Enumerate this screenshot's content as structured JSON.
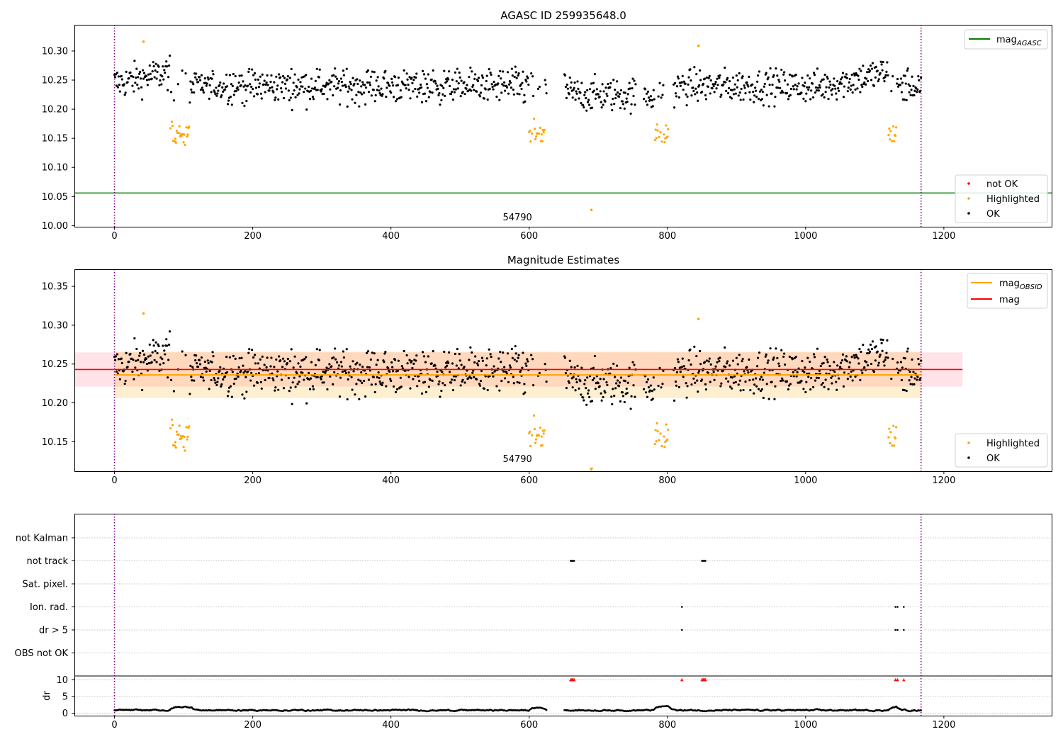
{
  "chart_data": [
    {
      "type": "scatter",
      "title": "AGASC ID 259935648.0",
      "xlim": [
        -58,
        1357
      ],
      "ylim": [
        9.998,
        10.345
      ],
      "xticks": [
        "0",
        "200",
        "400",
        "600",
        "800",
        "1000",
        "1200"
      ],
      "yticks": [
        "10.00",
        "10.05",
        "10.10",
        "10.15",
        "10.20",
        "10.25",
        "10.30"
      ],
      "obsid_boundaries": [
        0,
        1167
      ],
      "obsid_label": {
        "text": "54790",
        "x": 583,
        "y": 10.009
      },
      "mag_agasc": 10.056,
      "legend_upper": [
        {
          "label": "mag",
          "sub": "AGASC",
          "color": "#008000"
        }
      ],
      "legend_lower": [
        {
          "label": "not OK",
          "color": "#ff0000"
        },
        {
          "label": "Highlighted",
          "color": "#ffa500"
        },
        {
          "label": "OK",
          "color": "#000000"
        }
      ],
      "outlier_points": [
        {
          "x": 690,
          "y": 10.027,
          "color": "#ffa500"
        },
        {
          "x": 42,
          "y": 10.316,
          "color": "#ffa500"
        },
        {
          "x": 845,
          "y": 10.309,
          "color": "#ffa500"
        }
      ]
    },
    {
      "type": "scatter",
      "title": "Magnitude Estimates",
      "xlim": [
        -58,
        1357
      ],
      "ylim": [
        10.112,
        10.372
      ],
      "xticks": [
        "0",
        "200",
        "400",
        "600",
        "800",
        "1000",
        "1200"
      ],
      "yticks": [
        "10.15",
        "10.20",
        "10.25",
        "10.30",
        "10.35"
      ],
      "obsid_boundaries": [
        0,
        1167
      ],
      "obsid_label": {
        "text": "54790",
        "x": 583,
        "y": 10.124
      },
      "mag_obsid": {
        "value": 10.236,
        "band": [
          10.206,
          10.266
        ],
        "x_range": [
          0,
          1167
        ]
      },
      "mag": {
        "value": 10.243,
        "band": [
          10.221,
          10.265
        ],
        "x_range": [
          -58,
          1227
        ]
      },
      "legend_upper": [
        {
          "label": "mag",
          "sub": "OBSID",
          "color": "#ffa500"
        },
        {
          "label": "mag",
          "sub": "",
          "color": "#ff0000"
        }
      ],
      "legend_lower": [
        {
          "label": "Highlighted",
          "color": "#ffa500"
        },
        {
          "label": "OK",
          "color": "#000000"
        }
      ],
      "outlier_points": [
        {
          "x": 690,
          "y": 10.114,
          "color": "#ffa500"
        },
        {
          "x": 42,
          "y": 10.315,
          "color": "#ffa500"
        },
        {
          "x": 845,
          "y": 10.308,
          "color": "#ffa500"
        }
      ]
    },
    {
      "type": "scatter",
      "title": "",
      "xlim": [
        -58,
        1357
      ],
      "xticks": [
        "0",
        "200",
        "400",
        "600",
        "800",
        "1000",
        "1200"
      ],
      "obsid_boundaries": [
        0,
        1167
      ],
      "flag_categories": [
        "not Kalman",
        "not track",
        "Sat. pixel.",
        "Ion. rad.",
        "dr > 5",
        "OBS not OK"
      ],
      "flags": [
        {
          "category": "not track",
          "x": [
            660,
            661,
            662,
            663,
            664,
            665,
            850,
            851,
            852,
            853,
            854,
            855
          ]
        },
        {
          "category": "Ion. rad.",
          "x": [
            821,
            1130,
            1133,
            1142
          ]
        },
        {
          "category": "dr > 5",
          "x": [
            821,
            1130,
            1133,
            1142
          ]
        }
      ],
      "dr_ylabel": "dr",
      "dr_ylim": [
        -0.5,
        10.5
      ],
      "dr_yticks": [
        "0",
        "5",
        "10"
      ],
      "dr_markers": [
        660,
        661,
        662,
        663,
        664,
        665,
        821,
        850,
        851,
        852,
        853,
        854,
        855,
        1130,
        1133,
        1142
      ]
    }
  ]
}
